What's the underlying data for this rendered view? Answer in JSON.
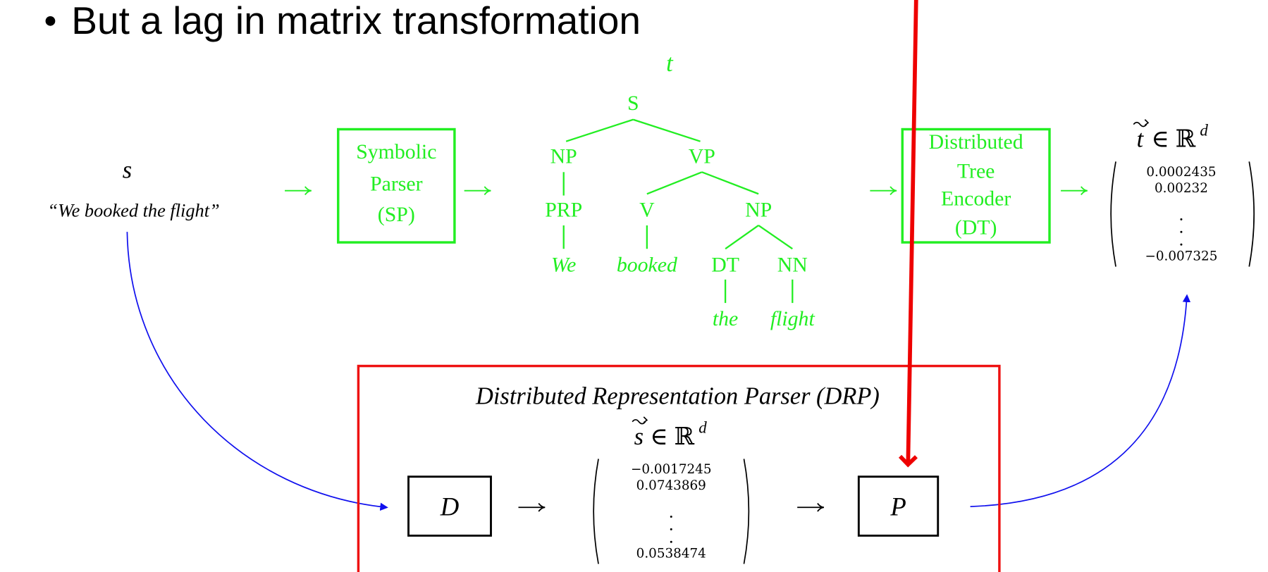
{
  "bullet": "But a lag in matrix transformation",
  "input": {
    "symbol": "s",
    "sentence": "“We booked the flight”"
  },
  "sp_box": [
    "Symbolic",
    "Parser",
    "(SP)"
  ],
  "tree": {
    "symbol": "t",
    "nodes": [
      "S",
      "NP",
      "VP",
      "PRP",
      "V",
      "NP",
      "We",
      "booked",
      "DT",
      "NN",
      "the",
      "flight"
    ]
  },
  "dt_box": [
    "Distributed",
    "Tree",
    "Encoder",
    "(DT)"
  ],
  "output": {
    "symbol": "t",
    "space": "∈ ℝ",
    "power": "d",
    "values": [
      "0.0002435",
      "0.00232",
      "−0.007325"
    ]
  },
  "drp": {
    "title": "Distributed Representation Parser (DRP)",
    "symbol": "s",
    "space": "∈ ℝ",
    "power": "d",
    "values": [
      "−0.0017245",
      "0.0743869",
      "0.0538474"
    ],
    "d_box": "D",
    "p_box": "P"
  }
}
